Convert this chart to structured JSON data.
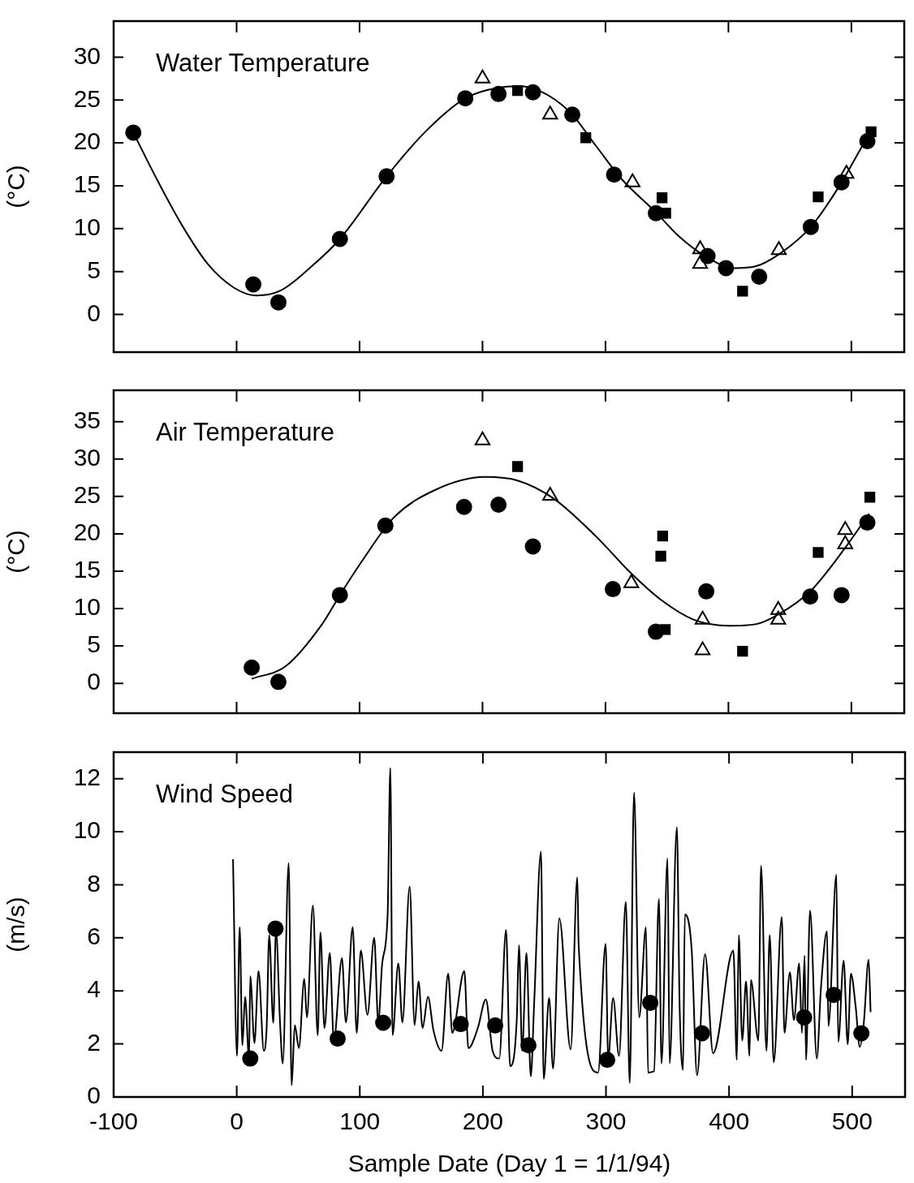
{
  "chart_data": [
    {
      "type": "scatter",
      "title": "Water Temperature",
      "ylabel": "(°C)",
      "xlim": [
        -100,
        543
      ],
      "xticks": [
        -100,
        0,
        100,
        200,
        300,
        400,
        500
      ],
      "ylim": [
        -4.4,
        34.2
      ],
      "yticks": [
        0,
        5,
        10,
        15,
        20,
        25,
        30
      ],
      "tick_labels": "y",
      "series": [
        {
          "type": "line",
          "color": "#000000",
          "marker": "none",
          "x": [
            -84,
            -65,
            -44,
            -23,
            -2,
            16,
            36,
            61,
            84,
            122,
            153.5,
            186,
            212,
            229,
            246,
            271,
            292,
            313,
            341,
            359,
            380,
            405,
            422,
            443,
            467,
            489,
            513
          ],
          "values": [
            21.2,
            15.8,
            10.3,
            5.8,
            3.1,
            2.2,
            2.8,
            5.6,
            8.8,
            16.1,
            21.3,
            25.2,
            26.4,
            26.6,
            26.1,
            23.6,
            19.7,
            15.8,
            11.9,
            9.2,
            6.9,
            5.4,
            5.6,
            7.2,
            10.2,
            14.7,
            20.7
          ]
        },
        {
          "color": "#000000",
          "marker": "circle",
          "x": [
            -84,
            13.6,
            34,
            84,
            122,
            186,
            213,
            241,
            273,
            307,
            341,
            383,
            398,
            425,
            467,
            492,
            513
          ],
          "values": [
            21.2,
            3.5,
            1.4,
            8.8,
            16.1,
            25.2,
            25.7,
            25.9,
            23.3,
            16.3,
            11.8,
            6.8,
            5.4,
            4.4,
            10.2,
            15.4,
            20.2
          ]
        },
        {
          "color": "#000000",
          "marker": "square",
          "x": [
            228.5,
            284,
            346,
            349,
            411.5,
            473,
            516
          ],
          "values": [
            26.1,
            20.6,
            13.6,
            11.8,
            2.7,
            13.7,
            21.3
          ]
        },
        {
          "color": "#000000",
          "marker": "triangle",
          "x": [
            200,
            255,
            322,
            377,
            377,
            441,
            496
          ],
          "values": [
            27.5,
            23.3,
            15.4,
            7.6,
            5.9,
            7.5,
            16.4
          ]
        }
      ]
    },
    {
      "type": "scatter",
      "title": "Air Temperature",
      "ylabel": "(°C)",
      "xlim": [
        -100,
        543
      ],
      "xticks": [
        -100,
        0,
        100,
        200,
        300,
        400,
        500
      ],
      "ylim": [
        -4,
        39.2
      ],
      "yticks": [
        0,
        5,
        10,
        15,
        20,
        25,
        30,
        35
      ],
      "tick_labels": "y",
      "series": [
        {
          "type": "line",
          "color": "#000000",
          "marker": "none",
          "x": [
            12.3,
            40,
            69.5,
            84,
            103,
            128,
            162,
            202,
            229,
            258,
            292,
            321,
            346.5,
            372,
            401,
            422,
            440.5,
            466.5,
            493.5,
            514.5
          ],
          "values": [
            0.6,
            2.3,
            7.9,
            11.8,
            16.6,
            22.2,
            25.9,
            27.6,
            27.1,
            24.7,
            19.7,
            14.7,
            11,
            8.5,
            7.7,
            7.9,
            9.2,
            12.3,
            17.8,
            22.7
          ]
        },
        {
          "color": "#000000",
          "marker": "circle",
          "x": [
            12.3,
            34,
            84,
            121,
            185,
            213,
            241,
            306,
            341,
            382,
            466.5,
            492,
            513
          ],
          "values": [
            2.1,
            0.2,
            11.8,
            21.1,
            23.6,
            23.9,
            18.3,
            12.6,
            6.9,
            12.3,
            11.6,
            11.8,
            21.5
          ]
        },
        {
          "color": "#000000",
          "marker": "square",
          "x": [
            228.5,
            346.5,
            345,
            348.6,
            411.5,
            473,
            515
          ],
          "values": [
            29,
            19.7,
            17,
            7.2,
            4.3,
            17.5,
            24.9
          ]
        },
        {
          "color": "#000000",
          "marker": "triangle",
          "x": [
            200,
            255,
            321,
            379,
            379,
            440.5,
            440.5,
            495,
            495
          ],
          "values": [
            32.5,
            25.1,
            13.4,
            8.5,
            4.4,
            9.8,
            8.5,
            20.5,
            18.6
          ]
        }
      ]
    },
    {
      "type": "line",
      "title": "Wind Speed",
      "ylabel": "(m/s)",
      "xlabel": "Sample Date (Day 1 = 1/1/94)",
      "xlim": [
        -100,
        543
      ],
      "xticks": [
        -100,
        0,
        100,
        200,
        300,
        400,
        500
      ],
      "ylim": [
        0,
        13
      ],
      "yticks": [
        0,
        2,
        4,
        6,
        8,
        10,
        12
      ],
      "series": [
        {
          "color": "#000000",
          "marker": "none",
          "x": [
            -3,
            0.2,
            2.4,
            4.6,
            6.8,
            10,
            11,
            14.4,
            17.7,
            22,
            24.3,
            26.4,
            29.7,
            31.9,
            35.2,
            37.4,
            42.2,
            44.6,
            47.2,
            50.5,
            54.9,
            57,
            61.9,
            65.8,
            68,
            71.3,
            75.6,
            78.9,
            85.5,
            88.7,
            94.2,
            97.5,
            100.8,
            106.2,
            111.7,
            115,
            118.2,
            122.6,
            124.8,
            126.6,
            131.3,
            134.6,
            140.5,
            144.5,
            147.7,
            151,
            155.4,
            159.8,
            166.4,
            171.8,
            175.1,
            184.9,
            188.2,
            195.9,
            202.4,
            207.9,
            213.3,
            218.8,
            222.1,
            227.5,
            229.3,
            231.9,
            235.4,
            238.9,
            241.7,
            247.2,
            249.4,
            253.8,
            257,
            262.1,
            271.3,
            276.7,
            277.8,
            293.6,
            299.7,
            301.8,
            305.8,
            310.6,
            316.1,
            319.3,
            322.8,
            327,
            332.5,
            334.2,
            339,
            343,
            345.1,
            350,
            351.7,
            357.6,
            359.8,
            362.6,
            364.1,
            369.6,
            374,
            380.5,
            387,
            403.5,
            406.3,
            407.9,
            410.7,
            413.8,
            416.6,
            417.7,
            423.8,
            426,
            430.4,
            433,
            436.3,
            442.8,
            445,
            449.4,
            452.7,
            457,
            459.2,
            461.4,
            462.5,
            465.8,
            471.3,
            474.6,
            479.6,
            480.7,
            487.2,
            488.7,
            493.1,
            496.4,
            499,
            502.9,
            506.2,
            509.5,
            513.4,
            515
          ],
          "values": [
            8.96,
            1.55,
            6.4,
            1.95,
            3.78,
            1.45,
            4.55,
            2.03,
            4.75,
            1.74,
            2.6,
            6.1,
            2.8,
            6.3,
            2.8,
            1.26,
            8.82,
            0.44,
            2.71,
            1.84,
            4.46,
            3,
            7.22,
            2.33,
            6.2,
            2.6,
            5.43,
            2.13,
            5.23,
            2.81,
            6.4,
            2.42,
            5.52,
            3.1,
            6,
            2.81,
            5.04,
            6.88,
            12.4,
            2.33,
            5.04,
            2.81,
            7.94,
            2.71,
            4.36,
            2.6,
            3.78,
            2.52,
            1.74,
            4.65,
            2.42,
            4.75,
            1.84,
            2.6,
            3.68,
            1.74,
            1.45,
            6.3,
            1.16,
            2.9,
            5.72,
            1.74,
            5.43,
            0.78,
            3.58,
            9.25,
            0.68,
            3.73,
            1.07,
            6.74,
            1.79,
            8.28,
            5.72,
            0.92,
            5.77,
            1.45,
            3.73,
            1.55,
            7.36,
            0.53,
            11.48,
            3,
            6.4,
            0.92,
            0.97,
            7.46,
            1.26,
            9,
            1.26,
            10.17,
            3.49,
            1.02,
            6.88,
            5.57,
            0.82,
            5.38,
            1.65,
            5.52,
            1.4,
            6.1,
            2.13,
            4.36,
            1.55,
            4.41,
            2.13,
            8.72,
            1.74,
            6.1,
            1.31,
            6.78,
            2.42,
            4.7,
            2.9,
            5.04,
            2.42,
            5.33,
            1.4,
            7.03,
            1.45,
            4.07,
            6.25,
            2.67,
            8.38,
            2.08,
            5.14,
            1.99,
            4.65,
            3.39,
            1.89,
            2.81,
            5.18,
            3.2
          ]
        },
        {
          "type": "scatter",
          "color": "#000000",
          "marker": "circle",
          "x": [
            11,
            31.5,
            82,
            119,
            182,
            210,
            237,
            301,
            336,
            378,
            461,
            485,
            507.5
          ],
          "values": [
            1.45,
            6.35,
            2.2,
            2.8,
            2.75,
            2.7,
            1.95,
            1.4,
            3.55,
            2.4,
            3,
            3.85,
            2.4
          ]
        }
      ]
    }
  ]
}
